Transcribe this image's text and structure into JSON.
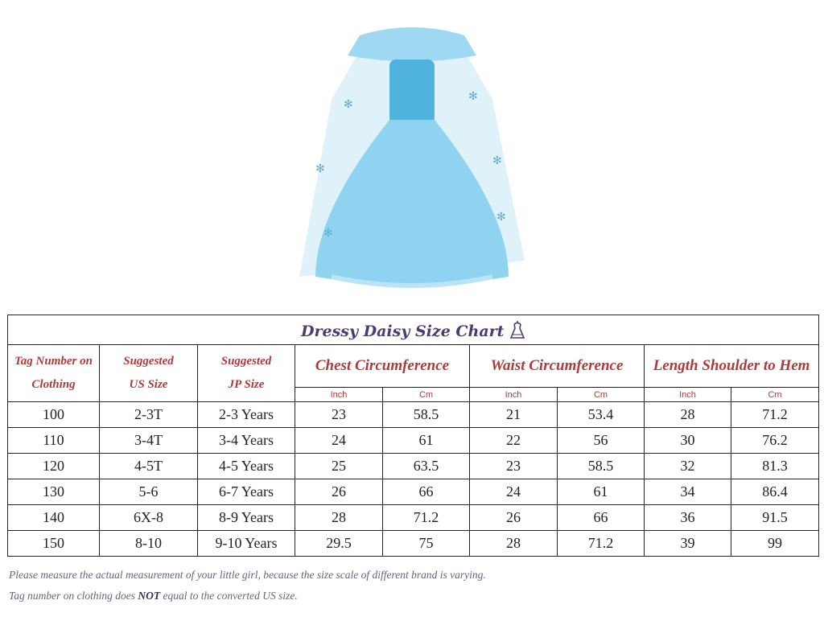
{
  "chart": {
    "title": "Dressy Daisy Size Chart",
    "headers": {
      "tag": "Tag Number on Clothing",
      "us": "Suggested US Size",
      "jp": "Suggested JP Size",
      "chest": "Chest Circumference",
      "waist": "Waist Circumference",
      "length": "Length Shoulder to Hem",
      "inch": "Inch",
      "cm": "Cm"
    },
    "rows": [
      [
        "100",
        "2-3T",
        "2-3 Years",
        "23",
        "58.5",
        "21",
        "53.4",
        "28",
        "71.2"
      ],
      [
        "110",
        "3-4T",
        "3-4 Years",
        "24",
        "61",
        "22",
        "56",
        "30",
        "76.2"
      ],
      [
        "120",
        "4-5T",
        "4-5 Years",
        "25",
        "63.5",
        "23",
        "58.5",
        "32",
        "81.3"
      ],
      [
        "130",
        "5-6",
        "6-7 Years",
        "26",
        "66",
        "24",
        "61",
        "34",
        "86.4"
      ],
      [
        "140",
        "6X-8",
        "8-9 Years",
        "28",
        "71.2",
        "26",
        "66",
        "36",
        "91.5"
      ],
      [
        "150",
        "8-10",
        "9-10 Years",
        "29.5",
        "75",
        "28",
        "71.2",
        "39",
        "99"
      ]
    ]
  },
  "notes": {
    "line1": "Please measure the actual measurement of your little girl, because the size scale of different brand is varying.",
    "line2_pre": "Tag number on clothing does ",
    "line2_bold": "NOT",
    "line2_post": " equal to the converted US size."
  },
  "colors": {
    "header": "#b03a3a",
    "title": "#4b3a75",
    "dress": "#8fd3f0"
  },
  "icons": {
    "title_icon": "dress-hanger-icon"
  }
}
